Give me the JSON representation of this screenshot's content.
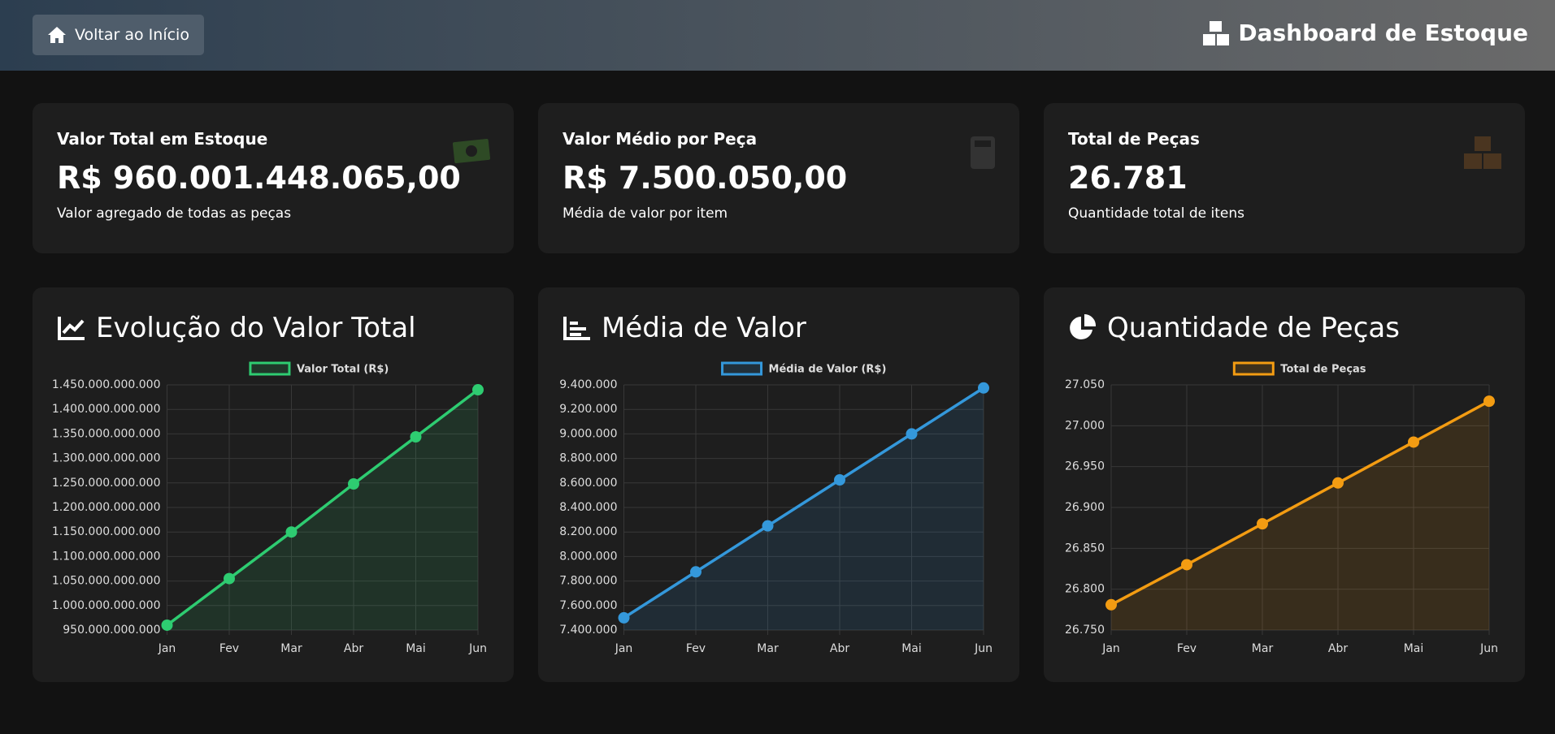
{
  "header": {
    "button": "Voltar ao Início",
    "title": "Dashboard de Estoque"
  },
  "cards": [
    {
      "title": "Valor Total em Estoque",
      "value": "R$ 960.001.448.065,00",
      "subtitle": "Valor agregado de todas as peças"
    },
    {
      "title": "Valor Médio por Peça",
      "value": "R$ 7.500.050,00",
      "subtitle": "Média de valor por item"
    },
    {
      "title": "Total de Peças",
      "value": "26.781",
      "subtitle": "Quantidade total de itens"
    }
  ],
  "chart_data": [
    {
      "type": "line",
      "title": "Evolução do Valor Total",
      "categories": [
        "Jan",
        "Fev",
        "Mar",
        "Abr",
        "Mai",
        "Jun"
      ],
      "series": [
        {
          "name": "Valor Total (R$)",
          "color": "#2ecc71",
          "values": [
            960000000000,
            1055000000000,
            1150000000000,
            1248000000000,
            1344000000000,
            1440000000000
          ]
        }
      ],
      "ylim": [
        950000000000,
        1450000000000
      ],
      "yticks": [
        {
          "value": 950000000000,
          "label": "950.000.000.000"
        },
        {
          "value": 1000000000000,
          "label": "1.000.000.000.000"
        },
        {
          "value": 1050000000000,
          "label": "1.050.000.000.000"
        },
        {
          "value": 1100000000000,
          "label": "1.100.000.000.000"
        },
        {
          "value": 1150000000000,
          "label": "1.150.000.000.000"
        },
        {
          "value": 1200000000000,
          "label": "1.200.000.000.000"
        },
        {
          "value": 1250000000000,
          "label": "1.250.000.000.000"
        },
        {
          "value": 1300000000000,
          "label": "1.300.000.000.000"
        },
        {
          "value": 1350000000000,
          "label": "1.350.000.000.000"
        },
        {
          "value": 1400000000000,
          "label": "1.400.000.000.000"
        },
        {
          "value": 1450000000000,
          "label": "1.450.000.000.000"
        }
      ],
      "grid": true,
      "legend": "top"
    },
    {
      "type": "line",
      "title": "Média de Valor",
      "categories": [
        "Jan",
        "Fev",
        "Mar",
        "Abr",
        "Mai",
        "Jun"
      ],
      "series": [
        {
          "name": "Média de Valor (R$)",
          "color": "#3498db",
          "values": [
            7500050,
            7875000,
            8250000,
            8625000,
            9000000,
            9375000
          ]
        }
      ],
      "ylim": [
        7400000,
        9400000
      ],
      "yticks": [
        {
          "value": 7400000,
          "label": "7.400.000"
        },
        {
          "value": 7600000,
          "label": "7.600.000"
        },
        {
          "value": 7800000,
          "label": "7.800.000"
        },
        {
          "value": 8000000,
          "label": "8.000.000"
        },
        {
          "value": 8200000,
          "label": "8.200.000"
        },
        {
          "value": 8400000,
          "label": "8.400.000"
        },
        {
          "value": 8600000,
          "label": "8.600.000"
        },
        {
          "value": 8800000,
          "label": "8.800.000"
        },
        {
          "value": 9000000,
          "label": "9.000.000"
        },
        {
          "value": 9200000,
          "label": "9.200.000"
        },
        {
          "value": 9400000,
          "label": "9.400.000"
        }
      ],
      "grid": true,
      "legend": "top"
    },
    {
      "type": "line",
      "title": "Quantidade de Peças",
      "categories": [
        "Jan",
        "Fev",
        "Mar",
        "Abr",
        "Mai",
        "Jun"
      ],
      "series": [
        {
          "name": "Total de Peças",
          "color": "#f39c12",
          "values": [
            26781,
            26830,
            26880,
            26930,
            26980,
            27030
          ]
        }
      ],
      "ylim": [
        26750,
        27050
      ],
      "yticks": [
        {
          "value": 26750,
          "label": "26.750"
        },
        {
          "value": 26800,
          "label": "26.800"
        },
        {
          "value": 26850,
          "label": "26.850"
        },
        {
          "value": 26900,
          "label": "26.900"
        },
        {
          "value": 26950,
          "label": "26.950"
        },
        {
          "value": 27000,
          "label": "27.000"
        },
        {
          "value": 27050,
          "label": "27.050"
        }
      ],
      "grid": true,
      "legend": "top"
    }
  ]
}
